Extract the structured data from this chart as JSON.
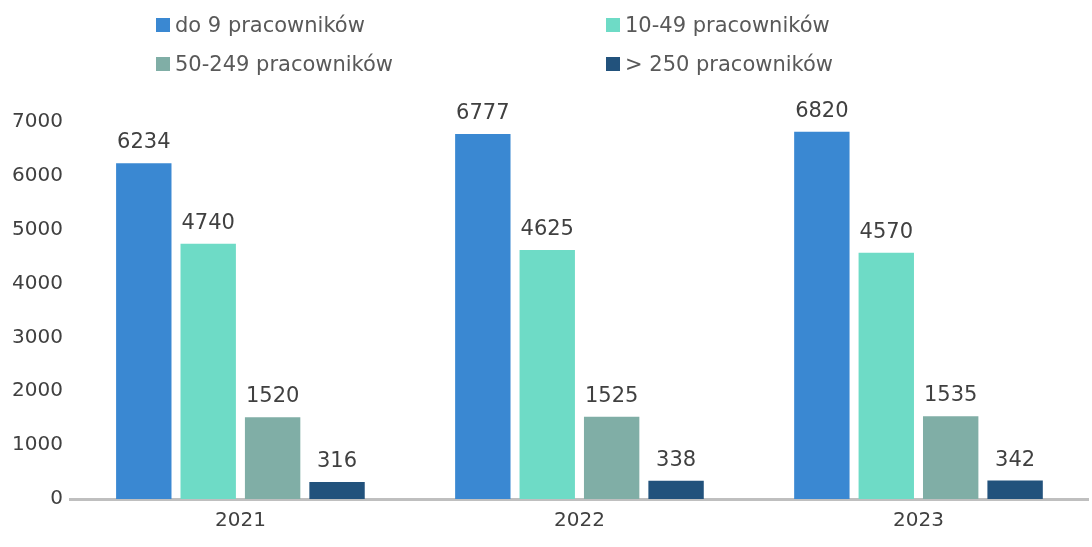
{
  "chart_data": {
    "type": "bar",
    "categories": [
      "2021",
      "2022",
      "2023"
    ],
    "series": [
      {
        "name": "do 9 pracowników",
        "color": "#3a88d2",
        "values": [
          6234,
          6777,
          6820
        ]
      },
      {
        "name": "10-49 pracowników",
        "color": "#6edbc6",
        "values": [
          4740,
          4625,
          4570
        ]
      },
      {
        "name": "50-249 pracowników",
        "color": "#80aea6",
        "values": [
          1520,
          1525,
          1535
        ]
      },
      {
        "name": "> 250 pracowników",
        "color": "#22527c",
        "values": [
          316,
          338,
          342
        ]
      }
    ],
    "ylim": [
      0,
      7000
    ],
    "yticks": [
      0,
      1000,
      2000,
      3000,
      4000,
      5000,
      6000,
      7000
    ],
    "grid": false,
    "legend": "top",
    "data_labels": true
  }
}
